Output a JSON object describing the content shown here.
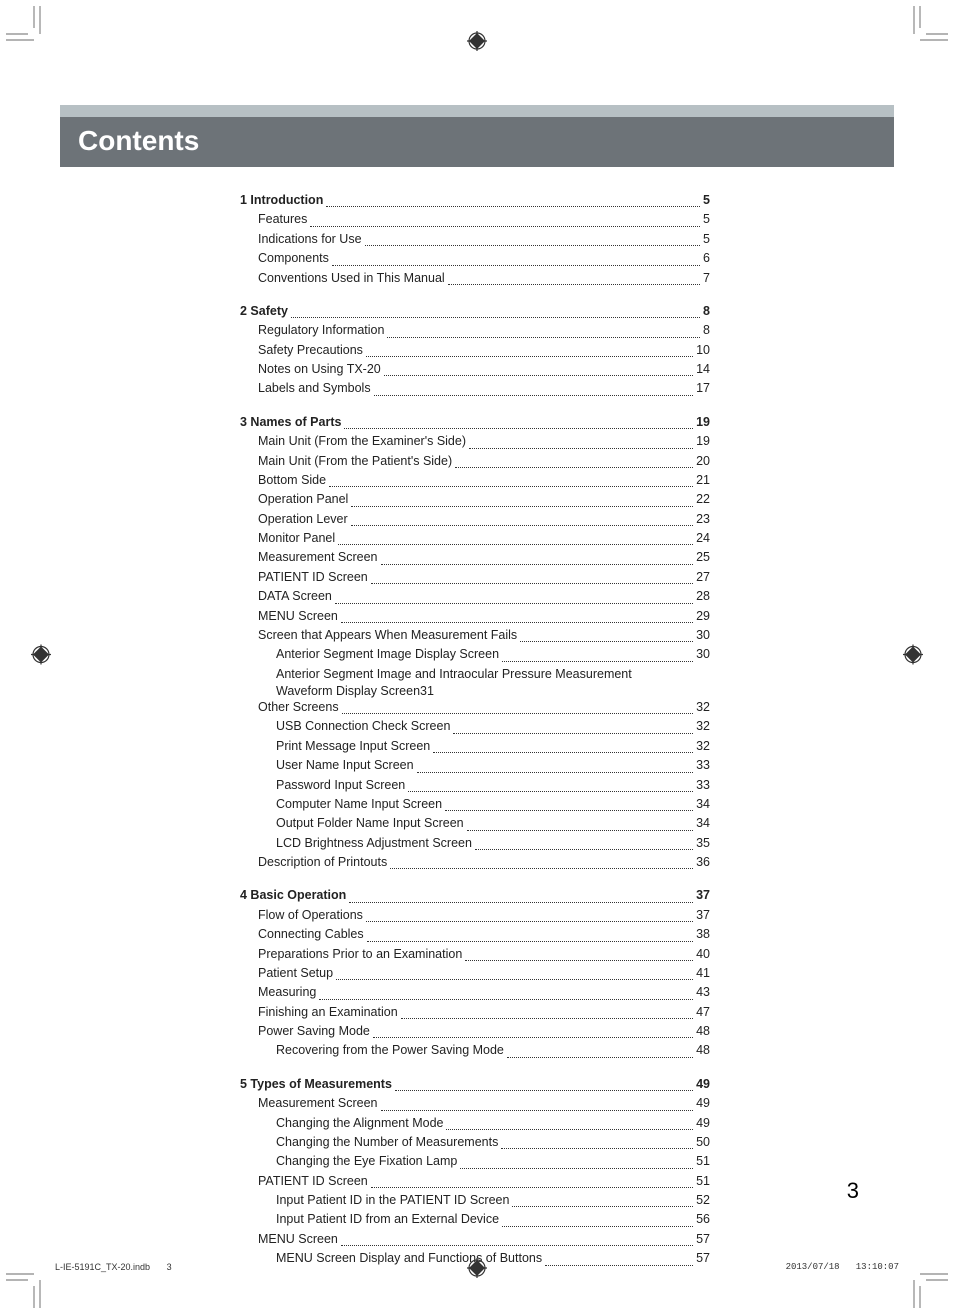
{
  "header": {
    "title": "Contents",
    "title_fontsize": 28,
    "bar_light_color": "#b7c0c4",
    "bar_dark_color": "#6d7378",
    "title_color": "#ffffff"
  },
  "toc": {
    "label_fontsize": 12.5,
    "text_color": "#222222",
    "dot_color": "#333333",
    "sections": [
      {
        "entries": [
          {
            "label": "1 Introduction",
            "page": "5",
            "level": 0,
            "bold": true
          },
          {
            "label": "Features",
            "page": "5",
            "level": 1
          },
          {
            "label": "Indications for Use",
            "page": "5",
            "level": 1
          },
          {
            "label": "Components",
            "page": "6",
            "level": 1
          },
          {
            "label": "Conventions Used in This Manual",
            "page": "7",
            "level": 1
          }
        ]
      },
      {
        "entries": [
          {
            "label": "2 Safety",
            "page": "8",
            "level": 0,
            "bold": true
          },
          {
            "label": "Regulatory Information",
            "page": "8",
            "level": 1
          },
          {
            "label": "Safety Precautions",
            "page": "10",
            "level": 1
          },
          {
            "label": "Notes on Using TX-20",
            "page": "14",
            "level": 1
          },
          {
            "label": "Labels and Symbols",
            "page": "17",
            "level": 1
          }
        ]
      },
      {
        "entries": [
          {
            "label": "3 Names of Parts",
            "page": "19",
            "level": 0,
            "bold": true
          },
          {
            "label": "Main Unit (From the Examiner's Side)",
            "page": "19",
            "level": 1
          },
          {
            "label": "Main Unit (From the Patient's Side)",
            "page": "20",
            "level": 1
          },
          {
            "label": "Bottom Side",
            "page": "21",
            "level": 1
          },
          {
            "label": "Operation Panel",
            "page": "22",
            "level": 1
          },
          {
            "label": "Operation Lever",
            "page": "23",
            "level": 1
          },
          {
            "label": "Monitor Panel",
            "page": "24",
            "level": 1
          },
          {
            "label": "Measurement Screen",
            "page": "25",
            "level": 1
          },
          {
            "label": "PATIENT ID Screen",
            "page": "27",
            "level": 1
          },
          {
            "label": "DATA Screen",
            "page": "28",
            "level": 1
          },
          {
            "label": "MENU Screen",
            "page": "29",
            "level": 1
          },
          {
            "label": "Screen that Appears When Measurement Fails",
            "page": "30",
            "level": 1
          },
          {
            "label": "Anterior Segment Image Display Screen",
            "page": "30",
            "level": 2
          },
          {
            "label_line1": "Anterior Segment Image and Intraocular Pressure Measurement",
            "label_line2": "Waveform Display Screen",
            "page": "31",
            "level": 2,
            "wrap": true
          },
          {
            "label": "Other Screens",
            "page": "32",
            "level": 1
          },
          {
            "label": "USB Connection Check Screen",
            "page": "32",
            "level": 2
          },
          {
            "label": "Print Message Input Screen",
            "page": "32",
            "level": 2
          },
          {
            "label": "User Name Input Screen",
            "page": "33",
            "level": 2
          },
          {
            "label": "Password Input Screen",
            "page": "33",
            "level": 2
          },
          {
            "label": "Computer Name Input Screen",
            "page": "34",
            "level": 2
          },
          {
            "label": "Output Folder Name Input Screen",
            "page": "34",
            "level": 2
          },
          {
            "label": "LCD Brightness Adjustment Screen",
            "page": "35",
            "level": 2
          },
          {
            "label": "Description of Printouts",
            "page": "36",
            "level": 1
          }
        ]
      },
      {
        "entries": [
          {
            "label": "4 Basic Operation",
            "page": "37",
            "level": 0,
            "bold": true
          },
          {
            "label": "Flow of Operations",
            "page": "37",
            "level": 1
          },
          {
            "label": "Connecting Cables",
            "page": "38",
            "level": 1
          },
          {
            "label": "Preparations Prior to an Examination",
            "page": "40",
            "level": 1
          },
          {
            "label": "Patient Setup",
            "page": "41",
            "level": 1
          },
          {
            "label": "Measuring",
            "page": "43",
            "level": 1
          },
          {
            "label": "Finishing an Examination",
            "page": "47",
            "level": 1
          },
          {
            "label": "Power Saving Mode",
            "page": "48",
            "level": 1
          },
          {
            "label": "Recovering from the Power Saving Mode",
            "page": "48",
            "level": 2
          }
        ]
      },
      {
        "entries": [
          {
            "label": "5 Types of Measurements",
            "page": "49",
            "level": 0,
            "bold": true
          },
          {
            "label": "Measurement Screen",
            "page": "49",
            "level": 1
          },
          {
            "label": "Changing the Alignment Mode",
            "page": "49",
            "level": 2
          },
          {
            "label": "Changing the Number of Measurements",
            "page": "50",
            "level": 2
          },
          {
            "label": "Changing the Eye Fixation Lamp",
            "page": "51",
            "level": 2
          },
          {
            "label": "PATIENT ID Screen",
            "page": "51",
            "level": 1
          },
          {
            "label": "Input Patient ID in the PATIENT ID Screen",
            "page": "52",
            "level": 2
          },
          {
            "label": "Input Patient ID from an External Device",
            "page": "56",
            "level": 2
          },
          {
            "label": "MENU Screen",
            "page": "57",
            "level": 1
          },
          {
            "label": "MENU Screen Display and Functions of Buttons",
            "page": "57",
            "level": 2
          }
        ]
      }
    ]
  },
  "page_number": "3",
  "footer": {
    "file": "L-IE-5191C_TX-20.indb",
    "sheet": "3",
    "date": "2013/07/18",
    "time": "13:10:07"
  },
  "marks": {
    "stroke": "#6d7378",
    "reg_fill": "#333333"
  }
}
